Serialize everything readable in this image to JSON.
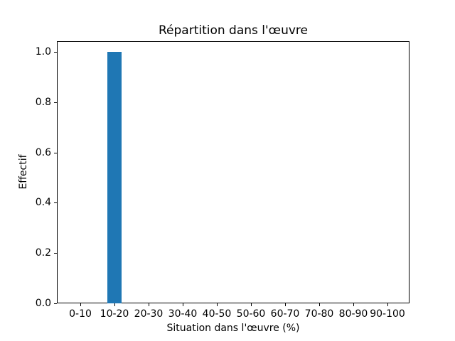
{
  "chart_data": {
    "type": "bar",
    "title": "Répartition dans l'œuvre",
    "xlabel": "Situation dans l'œuvre (%)",
    "ylabel": "Effectif",
    "categories": [
      "0-10",
      "10-20",
      "20-30",
      "30-40",
      "40-50",
      "50-60",
      "60-70",
      "70-80",
      "80-90",
      "90-100"
    ],
    "values": [
      0,
      1,
      0,
      0,
      0,
      0,
      0,
      0,
      0,
      0
    ],
    "yticks": [
      0.0,
      0.2,
      0.4,
      0.6,
      0.8,
      1.0
    ],
    "ytick_labels": [
      "0.0",
      "0.2",
      "0.4",
      "0.6",
      "0.8",
      "1.0"
    ],
    "ylim": [
      0,
      1.05
    ],
    "bar_color": "#1f77b4",
    "background_color": "#ffffff",
    "axis_color": "#000000",
    "grid": false,
    "legend_position": "none"
  }
}
